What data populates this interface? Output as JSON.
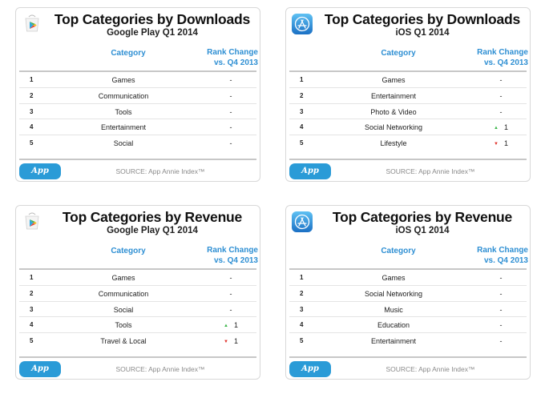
{
  "column_headers": {
    "category": "Category",
    "rank_change_line1": "Rank Change",
    "rank_change_line2": "vs. Q4 2013"
  },
  "source": "SOURCE: App Annie Index™",
  "badge": "App Annie",
  "colors": {
    "accent": "#2e8fd3",
    "badge": "#2a9bd7",
    "up": "#3cb64a",
    "down": "#e0312a"
  },
  "cards": [
    {
      "title": "Top Categories by Downloads",
      "subtitle": "Google Play Q1 2014",
      "logo": "google-play-logo",
      "rows": [
        {
          "rank": "1",
          "category": "Games",
          "change": "-",
          "dir": ""
        },
        {
          "rank": "2",
          "category": "Communication",
          "change": "-",
          "dir": ""
        },
        {
          "rank": "3",
          "category": "Tools",
          "change": "-",
          "dir": ""
        },
        {
          "rank": "4",
          "category": "Entertainment",
          "change": "-",
          "dir": ""
        },
        {
          "rank": "5",
          "category": "Social",
          "change": "-",
          "dir": ""
        }
      ]
    },
    {
      "title": "Top Categories by Downloads",
      "subtitle": "iOS Q1 2014",
      "logo": "app-store-logo",
      "rows": [
        {
          "rank": "1",
          "category": "Games",
          "change": "-",
          "dir": ""
        },
        {
          "rank": "2",
          "category": "Entertainment",
          "change": "-",
          "dir": ""
        },
        {
          "rank": "3",
          "category": "Photo & Video",
          "change": "-",
          "dir": ""
        },
        {
          "rank": "4",
          "category": "Social Networking",
          "change": "1",
          "dir": "up"
        },
        {
          "rank": "5",
          "category": "Lifestyle",
          "change": "1",
          "dir": "down"
        }
      ]
    },
    {
      "title": "Top Categories by Revenue",
      "subtitle": "Google Play Q1 2014",
      "logo": "google-play-logo",
      "rows": [
        {
          "rank": "1",
          "category": "Games",
          "change": "-",
          "dir": ""
        },
        {
          "rank": "2",
          "category": "Communication",
          "change": "-",
          "dir": ""
        },
        {
          "rank": "3",
          "category": "Social",
          "change": "-",
          "dir": ""
        },
        {
          "rank": "4",
          "category": "Tools",
          "change": "1",
          "dir": "up"
        },
        {
          "rank": "5",
          "category": "Travel & Local",
          "change": "1",
          "dir": "down"
        }
      ]
    },
    {
      "title": "Top Categories by Revenue",
      "subtitle": "iOS Q1 2014",
      "logo": "app-store-logo",
      "rows": [
        {
          "rank": "1",
          "category": "Games",
          "change": "-",
          "dir": ""
        },
        {
          "rank": "2",
          "category": "Social Networking",
          "change": "-",
          "dir": ""
        },
        {
          "rank": "3",
          "category": "Music",
          "change": "-",
          "dir": ""
        },
        {
          "rank": "4",
          "category": "Education",
          "change": "-",
          "dir": ""
        },
        {
          "rank": "5",
          "category": "Entertainment",
          "change": "-",
          "dir": ""
        }
      ]
    }
  ]
}
